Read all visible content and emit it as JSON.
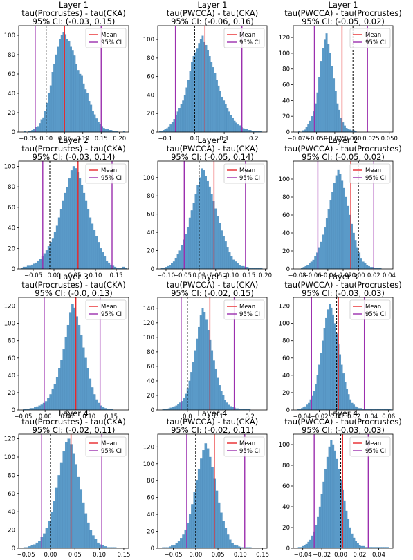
{
  "chart_data": [
    {
      "type": "bar",
      "title": [
        "Layer 1",
        "tau(Procrustes) - tau(CKA)",
        "95% CI: (-0.03, 0.15)"
      ],
      "xlim": [
        -0.075,
        0.225
      ],
      "ylim": [
        0,
        110
      ],
      "xticks": [
        -0.05,
        0.0,
        0.05,
        0.1,
        0.15,
        0.2
      ],
      "xtick_labels": [
        "−0.05",
        "0.00",
        "0.05",
        "0.10",
        "0.15",
        "0.20"
      ],
      "yticks": [
        0,
        20,
        40,
        60,
        80,
        100
      ],
      "mean": 0.05,
      "ci": [
        -0.03,
        0.15
      ],
      "zero_line": 0.0,
      "legend": [
        "Mean",
        "95% CI"
      ],
      "bins": {
        "start": -0.06,
        "width": 0.005,
        "counts": [
          1,
          0,
          1,
          1,
          2,
          3,
          5,
          6,
          9,
          13,
          15,
          22,
          30,
          40,
          48,
          62,
          70,
          80,
          88,
          96,
          100,
          103,
          101,
          96,
          94,
          88,
          84,
          79,
          70,
          64,
          60,
          58,
          50,
          44,
          40,
          32,
          28,
          22,
          18,
          14,
          10,
          8,
          6,
          4,
          3,
          3,
          2,
          2,
          1,
          1,
          1,
          0,
          0,
          0,
          1
        ]
      }
    },
    {
      "type": "bar",
      "title": [
        "Layer 1",
        "tau(PWCCA) - tau(CKA)",
        "95% CI: (-0.06, 0.16)"
      ],
      "xlim": [
        -0.125,
        0.245
      ],
      "ylim": [
        0,
        115
      ],
      "xticks": [
        -0.1,
        0.0,
        0.1,
        0.2
      ],
      "xtick_labels": [
        "−0.1",
        "0.0",
        "0.1",
        "0.2"
      ],
      "yticks": [
        0,
        20,
        40,
        60,
        80,
        100
      ],
      "mean": 0.035,
      "ci": [
        -0.065,
        0.16
      ],
      "zero_line": 0.0,
      "legend": [
        "Mean",
        "95% CI"
      ],
      "bins": {
        "start": -0.12,
        "width": 0.006,
        "counts": [
          1,
          1,
          2,
          3,
          4,
          6,
          8,
          11,
          14,
          18,
          22,
          26,
          30,
          34,
          40,
          48,
          56,
          66,
          76,
          82,
          86,
          90,
          96,
          100,
          104,
          97,
          94,
          88,
          82,
          76,
          70,
          64,
          56,
          50,
          44,
          38,
          34,
          30,
          26,
          22,
          18,
          15,
          12,
          10,
          8,
          7,
          5,
          4,
          3,
          3,
          2,
          2,
          1,
          1,
          1,
          1,
          1,
          1
        ]
      }
    },
    {
      "type": "bar",
      "title": [
        "Layer 1",
        "tau(PWCCA) - tau(Procrustes)",
        "95% CI: (-0.05, 0.02)"
      ],
      "xlim": [
        -0.082,
        0.055
      ],
      "ylim": [
        0,
        135
      ],
      "xticks": [
        -0.075,
        -0.05,
        -0.025,
        0.0,
        0.025,
        0.05
      ],
      "xtick_labels": [
        "−0.075",
        "−0.050",
        "−0.025",
        "0.000",
        "0.025",
        "0.050"
      ],
      "yticks": [
        0,
        20,
        40,
        60,
        80,
        100,
        120
      ],
      "mean": -0.015,
      "ci": [
        -0.053,
        0.02
      ],
      "zero_line": 0.0,
      "legend": [
        "Mean",
        "95% CI"
      ],
      "bins": {
        "start": -0.075,
        "width": 0.0025,
        "counts": [
          1,
          0,
          2,
          3,
          6,
          10,
          14,
          20,
          26,
          36,
          50,
          70,
          90,
          106,
          117,
          125,
          112,
          100,
          84,
          68,
          52,
          36,
          28,
          18,
          12,
          8,
          5,
          4,
          3,
          2,
          2,
          1
        ]
      }
    },
    {
      "type": "bar",
      "title": [
        "Layer 2",
        "tau(Procrustes) - tau(CKA)",
        "95% CI: (-0.03, 0.14)"
      ],
      "xlim": [
        -0.085,
        0.18
      ],
      "ylim": [
        0,
        105
      ],
      "xticks": [
        -0.05,
        0.0,
        0.05,
        0.1,
        0.15
      ],
      "xtick_labels": [
        "−0.05",
        "0.00",
        "0.05",
        "0.10",
        "0.15"
      ],
      "yticks": [
        0,
        20,
        40,
        60,
        80,
        100
      ],
      "mean": 0.058,
      "ci": [
        -0.027,
        0.14
      ],
      "zero_line": -0.01,
      "legend": [
        "Mean",
        "95% CI"
      ],
      "bins": {
        "start": -0.08,
        "width": 0.005,
        "counts": [
          1,
          2,
          2,
          3,
          3,
          4,
          5,
          6,
          8,
          10,
          12,
          15,
          18,
          22,
          26,
          30,
          36,
          42,
          50,
          58,
          66,
          74,
          80,
          88,
          96,
          100,
          98,
          94,
          88,
          82,
          74,
          66,
          58,
          50,
          44,
          38,
          32,
          26,
          20,
          16,
          12,
          8,
          6,
          4,
          3,
          2,
          1,
          1,
          1,
          2,
          1
        ]
      }
    },
    {
      "type": "bar",
      "title": [
        "Layer 2",
        "tau(PWCCA) - tau(CKA)",
        "95% CI: (-0.05, 0.14)"
      ],
      "xlim": [
        -0.125,
        0.205
      ],
      "ylim": [
        0,
        118
      ],
      "xticks": [
        -0.1,
        -0.05,
        0.0,
        0.05,
        0.1,
        0.15,
        0.2
      ],
      "xtick_labels": [
        "−0.10",
        "−0.05",
        "0.00",
        "0.05",
        "0.10",
        "0.15",
        "0.20"
      ],
      "yticks": [
        0,
        20,
        40,
        60,
        80,
        100
      ],
      "mean": 0.045,
      "ci": [
        -0.045,
        0.14
      ],
      "zero_line": 0.0,
      "legend": [
        "Mean",
        "95% CI"
      ],
      "bins": {
        "start": -0.115,
        "width": 0.006,
        "counts": [
          1,
          1,
          2,
          3,
          4,
          6,
          8,
          12,
          16,
          20,
          26,
          32,
          38,
          46,
          56,
          64,
          72,
          82,
          92,
          100,
          110,
          108,
          102,
          96,
          90,
          82,
          74,
          66,
          58,
          50,
          42,
          36,
          30,
          24,
          18,
          14,
          10,
          8,
          6,
          4,
          3,
          3,
          2,
          2,
          1,
          1,
          1,
          1,
          1,
          1,
          1
        ]
      }
    },
    {
      "type": "bar",
      "title": [
        "Layer 2",
        "tau(PWCCA) - tau(Procrustes)",
        "95% CI: (-0.05, 0.02)"
      ],
      "xlim": [
        -0.085,
        0.045
      ],
      "ylim": [
        0,
        120
      ],
      "xticks": [
        -0.08,
        -0.06,
        -0.04,
        -0.02,
        0.0,
        0.02,
        0.04
      ],
      "xtick_labels": [
        "−0.08",
        "−0.06",
        "−0.04",
        "−0.02",
        "0.00",
        "0.02",
        "0.04"
      ],
      "yticks": [
        0,
        20,
        40,
        60,
        80,
        100
      ],
      "mean": -0.01,
      "ci": [
        -0.053,
        0.02
      ],
      "zero_line": 0.0,
      "legend": [
        "Mean",
        "95% CI"
      ],
      "bins": {
        "start": -0.075,
        "width": 0.0025,
        "counts": [
          1,
          2,
          3,
          4,
          6,
          8,
          10,
          14,
          18,
          24,
          30,
          38,
          46,
          56,
          66,
          76,
          86,
          96,
          104,
          110,
          106,
          98,
          90,
          80,
          70,
          60,
          50,
          40,
          32,
          24,
          18,
          12,
          8,
          6,
          4,
          3,
          2,
          2,
          1,
          1,
          1,
          1
        ]
      }
    },
    {
      "type": "bar",
      "title": [
        "Layer 3",
        "tau(Procrustes) - tau(CKA)",
        "95% CI: (-0.0, 0.13)"
      ],
      "xlim": [
        -0.06,
        0.19
      ],
      "ylim": [
        0,
        130
      ],
      "xticks": [
        -0.05,
        0.0,
        0.05,
        0.1,
        0.15
      ],
      "xtick_labels": [
        "−0.05",
        "0.00",
        "0.05",
        "0.10",
        "0.15"
      ],
      "yticks": [
        0,
        20,
        40,
        60,
        80,
        100,
        120
      ],
      "mean": 0.07,
      "ci": [
        -0.002,
        0.125
      ],
      "zero_line": -0.002,
      "legend": [
        "Mean",
        "95% CI"
      ],
      "bins": {
        "start": -0.05,
        "width": 0.005,
        "counts": [
          1,
          1,
          1,
          2,
          2,
          3,
          4,
          5,
          6,
          8,
          10,
          14,
          18,
          24,
          30,
          38,
          48,
          58,
          70,
          84,
          98,
          112,
          122,
          118,
          108,
          98,
          86,
          72,
          60,
          48,
          36,
          26,
          18,
          12,
          8,
          5,
          3,
          2,
          1,
          1,
          1
        ]
      }
    },
    {
      "type": "bar",
      "title": [
        "Layer 3",
        "tau(PWCCA) - tau(CKA)",
        "95% CI: (-0.02, 0.15)"
      ],
      "xlim": [
        -0.095,
        0.255
      ],
      "ylim": [
        0,
        155
      ],
      "xticks": [
        0.0,
        0.1,
        0.2
      ],
      "xtick_labels": [
        "0.0",
        "0.1",
        "0.2"
      ],
      "yticks": [
        0,
        20,
        40,
        60,
        80,
        100,
        120,
        140
      ],
      "mean": 0.072,
      "ci": [
        -0.02,
        0.15
      ],
      "zero_line": 0.0,
      "legend": [
        "Mean",
        "95% CI"
      ],
      "bins": {
        "start": -0.08,
        "width": 0.006,
        "counts": [
          1,
          1,
          1,
          2,
          3,
          4,
          5,
          6,
          8,
          10,
          12,
          16,
          22,
          30,
          40,
          52,
          66,
          82,
          98,
          114,
          130,
          140,
          134,
          124,
          110,
          96,
          82,
          68,
          56,
          44,
          34,
          26,
          20,
          14,
          10,
          7,
          5,
          4,
          3,
          2,
          2,
          1,
          1,
          1,
          1,
          1,
          1
        ]
      }
    },
    {
      "type": "bar",
      "title": [
        "Layer 3",
        "tau(PWCCA) - tau(Procrustes)",
        "95% CI: (-0.03, 0.03)"
      ],
      "xlim": [
        -0.05,
        0.065
      ],
      "ylim": [
        0,
        130
      ],
      "xticks": [
        -0.04,
        -0.02,
        0.0,
        0.02,
        0.04,
        0.06
      ],
      "xtick_labels": [
        "−0.04",
        "−0.02",
        "0.00",
        "0.02",
        "0.04",
        "0.06"
      ],
      "yticks": [
        0,
        20,
        40,
        60,
        80,
        100,
        120
      ],
      "mean": 0.002,
      "ci": [
        -0.029,
        0.032
      ],
      "zero_line": 0.0,
      "legend": [
        "Mean",
        "95% CI"
      ],
      "bins": {
        "start": -0.045,
        "width": 0.002,
        "counts": [
          1,
          1,
          2,
          3,
          4,
          6,
          8,
          12,
          16,
          22,
          30,
          40,
          52,
          66,
          80,
          94,
          106,
          116,
          122,
          118,
          110,
          100,
          88,
          76,
          64,
          52,
          42,
          32,
          24,
          18,
          12,
          8,
          6,
          4,
          3,
          2,
          2,
          1,
          1,
          1,
          1,
          1,
          1,
          1,
          1,
          1,
          1,
          1,
          1,
          1,
          1,
          1,
          1,
          1
        ]
      }
    },
    {
      "type": "bar",
      "title": [
        "Layer 4",
        "tau(Procrustes) - tau(CKA)",
        "95% CI: (-0.02, 0.11)"
      ],
      "xlim": [
        -0.065,
        0.16
      ],
      "ylim": [
        0,
        125
      ],
      "xticks": [
        -0.05,
        0.0,
        0.05,
        0.1,
        0.15
      ],
      "xtick_labels": [
        "−0.05",
        "0.00",
        "0.05",
        "0.10",
        "0.15"
      ],
      "yticks": [
        0,
        20,
        40,
        60,
        80,
        100,
        120
      ],
      "mean": 0.042,
      "ci": [
        -0.018,
        0.105
      ],
      "zero_line": 0.0,
      "legend": [
        "Mean",
        "95% CI"
      ],
      "bins": {
        "start": -0.055,
        "width": 0.005,
        "counts": [
          1,
          1,
          2,
          3,
          4,
          6,
          8,
          12,
          16,
          22,
          30,
          40,
          52,
          66,
          80,
          94,
          106,
          116,
          120,
          114,
          104,
          92,
          78,
          64,
          50,
          38,
          28,
          20,
          14,
          10,
          6,
          4,
          3,
          2,
          1,
          1,
          1,
          1
        ]
      }
    },
    {
      "type": "bar",
      "title": [
        "Layer 4",
        "tau(PWCCA) - tau(CKA)",
        "95% CI: (-0.02, 0.11)"
      ],
      "xlim": [
        -0.085,
        0.16
      ],
      "ylim": [
        0,
        135
      ],
      "xticks": [
        -0.05,
        0.0,
        0.05,
        0.1,
        0.15
      ],
      "xtick_labels": [
        "−0.05",
        "0.00",
        "0.05",
        "0.10",
        "0.15"
      ],
      "yticks": [
        0,
        20,
        40,
        60,
        80,
        100,
        120
      ],
      "mean": 0.042,
      "ci": [
        -0.02,
        0.11
      ],
      "zero_line": 0.0,
      "legend": [
        "Mean",
        "95% CI"
      ],
      "bins": {
        "start": -0.075,
        "width": 0.005,
        "counts": [
          1,
          1,
          1,
          2,
          3,
          4,
          6,
          8,
          12,
          16,
          22,
          30,
          40,
          52,
          66,
          80,
          94,
          106,
          116,
          124,
          118,
          108,
          96,
          82,
          68,
          54,
          42,
          32,
          24,
          16,
          10,
          6,
          4,
          3,
          2,
          1,
          1,
          1,
          1,
          1
        ]
      }
    },
    {
      "type": "bar",
      "title": [
        "Layer 4",
        "tau(PWCCA) - tau(Procrustes)",
        "95% CI: (-0.03, 0.03)"
      ],
      "xlim": [
        -0.05,
        0.055
      ],
      "ylim": [
        0,
        110
      ],
      "xticks": [
        -0.04,
        -0.02,
        0.0,
        0.02,
        0.04
      ],
      "xtick_labels": [
        "−0.04",
        "−0.02",
        "0.00",
        "0.02",
        "0.04"
      ],
      "yticks": [
        0,
        20,
        40,
        60,
        80,
        100
      ],
      "mean": 0.002,
      "ci": [
        -0.028,
        0.029
      ],
      "zero_line": 0.0,
      "legend": [
        "Mean",
        "95% CI"
      ],
      "bins": {
        "start": -0.045,
        "width": 0.002,
        "counts": [
          1,
          1,
          2,
          3,
          4,
          6,
          8,
          12,
          16,
          22,
          30,
          40,
          52,
          64,
          76,
          88,
          98,
          104,
          100,
          94,
          86,
          76,
          66,
          56,
          46,
          36,
          28,
          20,
          14,
          10,
          7,
          5,
          3,
          2,
          2,
          1,
          1,
          1,
          1,
          1,
          1,
          1,
          1,
          1,
          1,
          1,
          1,
          1
        ]
      }
    }
  ]
}
